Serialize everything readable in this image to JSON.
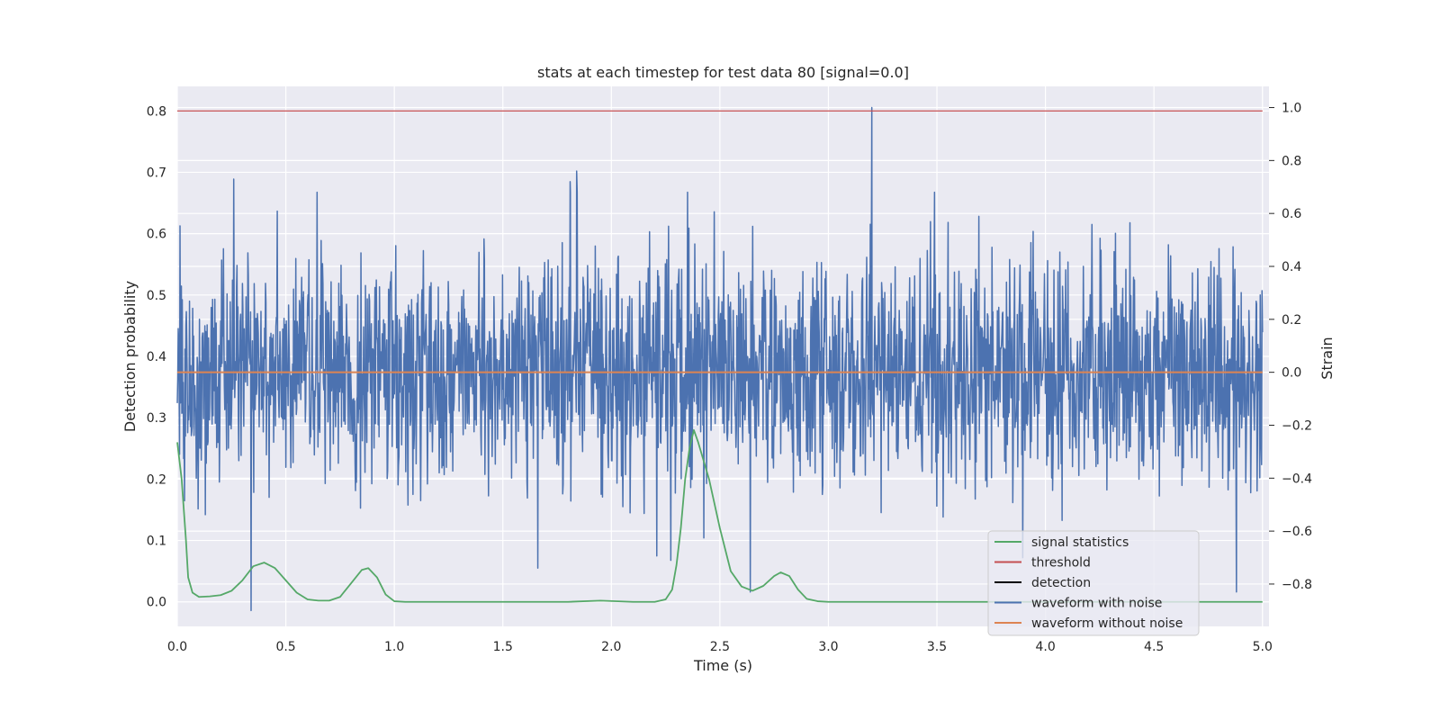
{
  "chart_data": {
    "type": "line",
    "title": "stats at each timestep for test data 80 [signal=0.0]",
    "xlabel": "Time (s)",
    "ylabel": "Detection probability",
    "y2label": "Strain",
    "xlim": [
      0.0,
      5.03
    ],
    "ylim": [
      -0.04,
      0.84
    ],
    "y2lim": [
      -0.96,
      1.08
    ],
    "grid": true,
    "legend_position": "lower-right",
    "xticks": [
      "0.0",
      "0.5",
      "1.0",
      "1.5",
      "2.0",
      "2.5",
      "3.0",
      "3.5",
      "4.0",
      "4.5",
      "5.0"
    ],
    "yticks": [
      "0.0",
      "0.1",
      "0.2",
      "0.3",
      "0.4",
      "0.5",
      "0.6",
      "0.7",
      "0.8"
    ],
    "y2ticks": [
      "−0.8",
      "−0.6",
      "−0.4",
      "−0.2",
      "0.0",
      "0.2",
      "0.4",
      "0.6",
      "0.8",
      "1.0"
    ],
    "series": [
      {
        "name": "signal statistics",
        "axis": "left",
        "color": "#55a868",
        "x": [
          0.0,
          0.02,
          0.04,
          0.05,
          0.07,
          0.1,
          0.15,
          0.2,
          0.25,
          0.3,
          0.35,
          0.4,
          0.45,
          0.5,
          0.55,
          0.6,
          0.65,
          0.7,
          0.75,
          0.8,
          0.85,
          0.88,
          0.92,
          0.96,
          1.0,
          1.05,
          1.2,
          1.5,
          1.8,
          1.95,
          2.1,
          2.2,
          2.25,
          2.28,
          2.3,
          2.32,
          2.34,
          2.36,
          2.38,
          2.4,
          2.45,
          2.5,
          2.55,
          2.6,
          2.65,
          2.7,
          2.75,
          2.78,
          2.82,
          2.86,
          2.9,
          2.95,
          3.0,
          3.5,
          4.0,
          4.5,
          5.0
        ],
        "y": [
          0.26,
          0.2,
          0.1,
          0.04,
          0.015,
          0.008,
          0.009,
          0.011,
          0.018,
          0.035,
          0.058,
          0.064,
          0.055,
          0.035,
          0.015,
          0.004,
          0.002,
          0.002,
          0.008,
          0.03,
          0.052,
          0.055,
          0.04,
          0.012,
          0.001,
          0.0,
          0.0,
          0.0,
          0.0,
          0.002,
          0.0,
          0.0,
          0.004,
          0.02,
          0.06,
          0.12,
          0.2,
          0.25,
          0.28,
          0.26,
          0.2,
          0.12,
          0.05,
          0.025,
          0.018,
          0.026,
          0.042,
          0.048,
          0.042,
          0.02,
          0.005,
          0.001,
          0.0,
          0.0,
          0.0,
          0.0,
          0.0
        ]
      },
      {
        "name": "threshold",
        "axis": "left",
        "color": "#c44e52",
        "x": [
          0.0,
          5.0
        ],
        "y": [
          0.8,
          0.8
        ]
      },
      {
        "name": "detection",
        "axis": "left",
        "color": "#000000",
        "x": [],
        "y": []
      },
      {
        "name": "waveform with noise",
        "axis": "right",
        "color": "#4c72b0",
        "duration": 5.0,
        "amplitude_range": [
          -0.9,
          1.0
        ],
        "peaks": [
          {
            "x": 0.26,
            "y": 0.73
          },
          {
            "x": 1.81,
            "y": 0.72
          },
          {
            "x": 1.84,
            "y": 0.76
          },
          {
            "x": 3.2,
            "y": 1.0
          },
          {
            "x": 0.34,
            "y": -0.9
          },
          {
            "x": 2.64,
            "y": -0.83
          },
          {
            "x": 4.88,
            "y": -0.83
          }
        ]
      },
      {
        "name": "waveform without noise",
        "axis": "right",
        "color": "#dd8452",
        "x": [
          0.0,
          5.0
        ],
        "y": [
          0.0,
          0.0
        ]
      }
    ]
  }
}
